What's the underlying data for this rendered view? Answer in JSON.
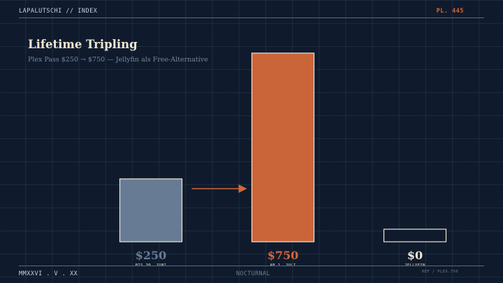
{
  "header": {
    "left": "LAPALUTSCHI // INDEX",
    "right": "PL. 445"
  },
  "footer": {
    "left": "MMXXVI . V . XX",
    "center": "NOCTURNAL",
    "right": "REF / PLEX.750"
  },
  "colors": {
    "background": "#0f1b2d",
    "bar_before": "#687b94",
    "bar_after": "#ca653a",
    "bar_free": "#0f1b2d",
    "bar_outline": "#efe6d2",
    "value_before": "#687b94",
    "value_after": "#d4673b",
    "value_free": "#efe6d2",
    "arrow": "#d4673b"
  },
  "chart_data": {
    "type": "bar",
    "title": "Lifetime Tripling",
    "subtitle": "Plex Pass $250 → $750 — Jellyfin als Free-Alternative",
    "categories": [
      "BIS 30. JUNI",
      "AB 1. JULI",
      "JELLYFIN"
    ],
    "values": [
      250,
      750,
      0
    ],
    "value_labels": [
      "$250",
      "$750",
      "$0"
    ],
    "ylim": [
      0,
      750
    ],
    "grid": true,
    "annotations": [
      "arrow from first bar to second bar"
    ]
  }
}
